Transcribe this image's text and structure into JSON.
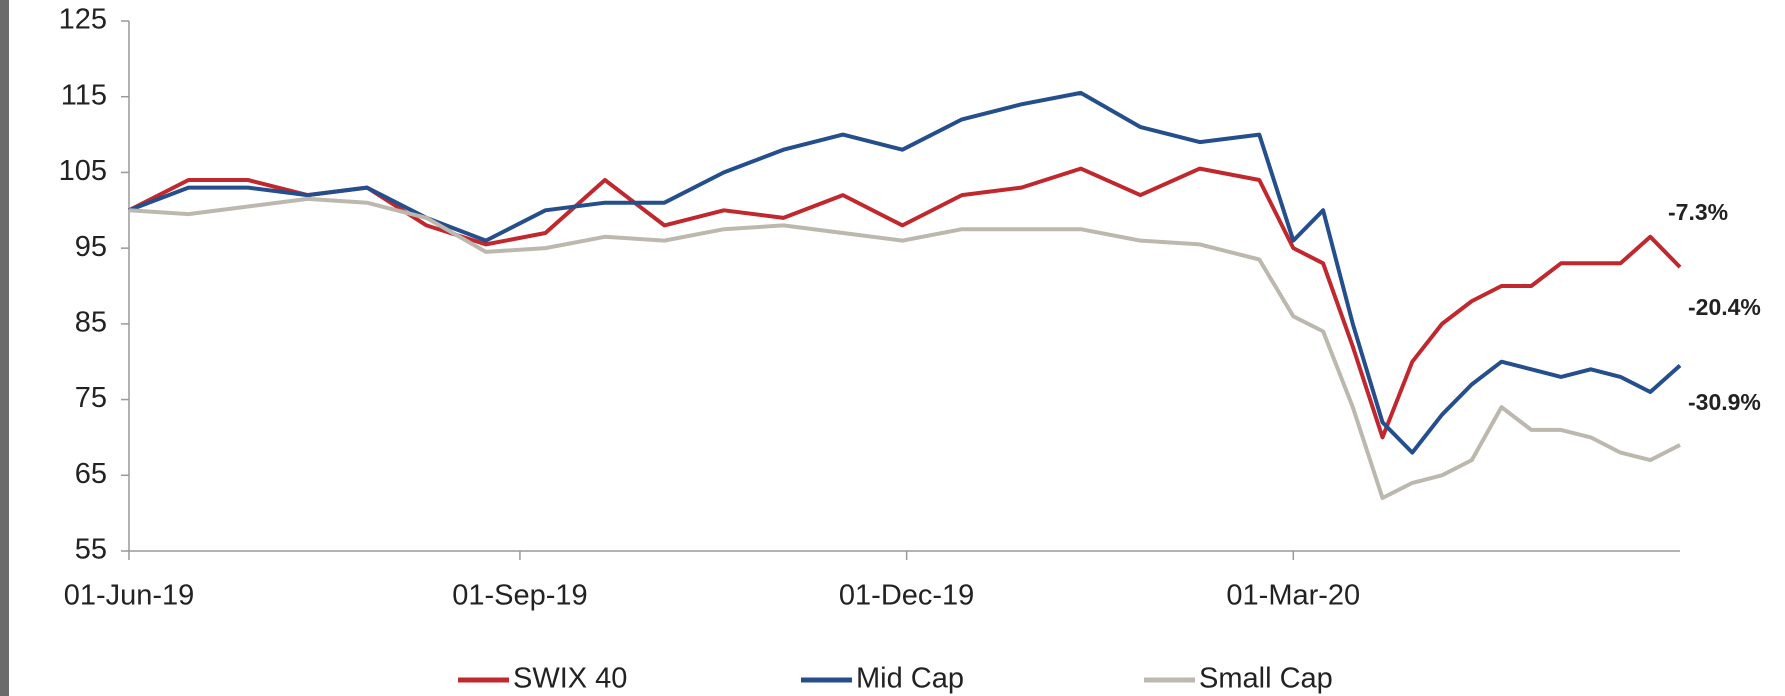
{
  "chart_data": {
    "type": "line",
    "x": [
      "2019-06-01",
      "2019-06-15",
      "2019-06-29",
      "2019-07-13",
      "2019-07-27",
      "2019-08-10",
      "2019-08-24",
      "2019-09-07",
      "2019-09-21",
      "2019-10-05",
      "2019-10-19",
      "2019-11-02",
      "2019-11-16",
      "2019-11-30",
      "2019-12-14",
      "2019-12-28",
      "2020-01-11",
      "2020-01-25",
      "2020-02-08",
      "2020-02-22",
      "2020-03-01",
      "2020-03-08",
      "2020-03-15",
      "2020-03-22",
      "2020-03-29",
      "2020-04-05",
      "2020-04-12",
      "2020-04-19",
      "2020-04-26",
      "2020-05-03",
      "2020-05-10",
      "2020-05-17",
      "2020-05-24",
      "2020-05-31"
    ],
    "series": [
      {
        "name": "SWIX 40",
        "color": "#c0282d",
        "values": [
          100,
          104,
          104,
          102,
          103,
          98,
          95.5,
          97,
          104,
          98,
          100,
          99,
          102,
          98,
          102,
          103,
          105.5,
          102,
          105.5,
          104,
          95,
          93,
          82,
          70,
          80,
          85,
          88,
          90,
          90,
          93,
          93,
          93,
          96.5,
          92.5
        ]
      },
      {
        "name": "Mid Cap",
        "color": "#244f8c",
        "values": [
          100,
          103,
          103,
          102,
          103,
          99,
          96,
          100,
          101,
          101,
          105,
          108,
          110,
          108,
          112,
          114,
          115.5,
          111,
          109,
          110,
          96,
          100,
          85,
          72,
          68,
          73,
          77,
          80,
          79,
          78,
          79,
          78,
          76,
          79.5
        ]
      },
      {
        "name": "Small Cap",
        "color": "#bcb8ad",
        "values": [
          100,
          99.5,
          100.5,
          101.5,
          101,
          99,
          94.5,
          95,
          96.5,
          96,
          97.5,
          98,
          97,
          96,
          97.5,
          97.5,
          97.5,
          96,
          95.5,
          93.5,
          86,
          84,
          74,
          62,
          64,
          65,
          67,
          74,
          71,
          71,
          70,
          68,
          67,
          69
        ]
      }
    ],
    "annotations": [
      {
        "text": "-7.3%",
        "color": "#c0282d"
      },
      {
        "text": "-20.4%",
        "color": "#244f8c"
      },
      {
        "text": "-30.9%",
        "color": "#bcb8ad"
      }
    ],
    "xlim": [
      "2019-06-01",
      "2020-05-31"
    ],
    "xticks": [
      {
        "value": "2019-06-01",
        "label": "01-Jun-19"
      },
      {
        "value": "2019-09-01",
        "label": "01-Sep-19"
      },
      {
        "value": "2019-12-01",
        "label": "01-Dec-19"
      },
      {
        "value": "2020-03-01",
        "label": "01-Mar-20"
      }
    ],
    "ylim": [
      55,
      125
    ],
    "yticks": [
      55,
      65,
      75,
      85,
      95,
      105,
      115,
      125
    ],
    "grid": false,
    "legend": "bottom"
  }
}
